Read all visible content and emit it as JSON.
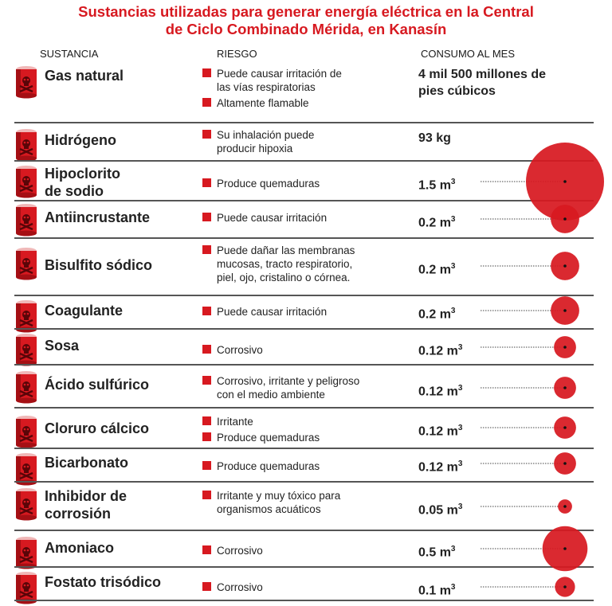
{
  "title": {
    "line1": "Sustancias utilizadas para generar energía eléctrica en la Central",
    "line2": "de Ciclo Combinado Mérida, en Kanasín"
  },
  "headers": {
    "sustancia": "SUSTANCIA",
    "riesgo": "RIESGO",
    "consumo": "CONSUMO AL MES"
  },
  "colors": {
    "accent": "#d71920",
    "rule": "#555555"
  },
  "rows": [
    {
      "name": [
        "Gas natural"
      ],
      "risks": [
        [
          "Puede causar irritación de",
          "las vías respiratorias"
        ],
        [
          "Altamente flamable"
        ]
      ],
      "consumo": [
        "4 mil 500 millones de",
        "pies cúbicos"
      ],
      "unit": "",
      "value_m3": null
    },
    {
      "name": [
        "Hidrógeno"
      ],
      "risks": [
        [
          "Su inhalación puede",
          "producir hipoxia"
        ]
      ],
      "consumo": [
        "93 kg"
      ],
      "unit": "",
      "value_m3": null
    },
    {
      "name": [
        "Hipoclorito",
        "de sodio"
      ],
      "risks": [
        [
          "Produce quemaduras"
        ]
      ],
      "consumo": [
        "1.5 m"
      ],
      "unit": "3",
      "value_m3": 1.5
    },
    {
      "name": [
        "Antiincrustante"
      ],
      "risks": [
        [
          "Puede causar irritación"
        ]
      ],
      "consumo": [
        "0.2 m"
      ],
      "unit": "3",
      "value_m3": 0.2
    },
    {
      "name": [
        "Bisulfito sódico"
      ],
      "risks": [
        [
          "Puede dañar las membranas",
          "mucosas, tracto respiratorio,",
          "piel, ojo, cristalino o córnea."
        ]
      ],
      "consumo": [
        "0.2 m"
      ],
      "unit": "3",
      "value_m3": 0.2
    },
    {
      "name": [
        "Coagulante"
      ],
      "risks": [
        [
          "Puede causar irritación"
        ]
      ],
      "consumo": [
        "0.2 m"
      ],
      "unit": "3",
      "value_m3": 0.2
    },
    {
      "name": [
        "Sosa"
      ],
      "risks": [
        [
          "Corrosivo"
        ]
      ],
      "consumo": [
        "0.12 m"
      ],
      "unit": "3",
      "value_m3": 0.12
    },
    {
      "name": [
        "Ácido sulfúrico"
      ],
      "risks": [
        [
          "Corrosivo, irritante y peligroso",
          "con el medio ambiente"
        ]
      ],
      "consumo": [
        "0.12 m"
      ],
      "unit": "3",
      "value_m3": 0.12
    },
    {
      "name": [
        "Cloruro cálcico"
      ],
      "risks": [
        [
          "Irritante"
        ],
        [
          "Produce quemaduras"
        ]
      ],
      "consumo": [
        "0.12 m"
      ],
      "unit": "3",
      "value_m3": 0.12
    },
    {
      "name": [
        "Bicarbonato"
      ],
      "risks": [
        [
          "Produce quemaduras"
        ]
      ],
      "consumo": [
        "0.12 m"
      ],
      "unit": "3",
      "value_m3": 0.12
    },
    {
      "name": [
        "Inhibidor de",
        "corrosión"
      ],
      "risks": [
        [
          "Irritante y muy tóxico para",
          "organismos acuáticos"
        ]
      ],
      "consumo": [
        "0.05 m"
      ],
      "unit": "3",
      "value_m3": 0.05
    },
    {
      "name": [
        "Amoniaco"
      ],
      "risks": [
        [
          "Corrosivo"
        ]
      ],
      "consumo": [
        "0.5 m"
      ],
      "unit": "3",
      "value_m3": 0.5
    },
    {
      "name": [
        "Fostato trisódico"
      ],
      "risks": [
        [
          "Corrosivo"
        ]
      ],
      "consumo": [
        "0.1 m"
      ],
      "unit": "3",
      "value_m3": 0.1
    }
  ]
}
